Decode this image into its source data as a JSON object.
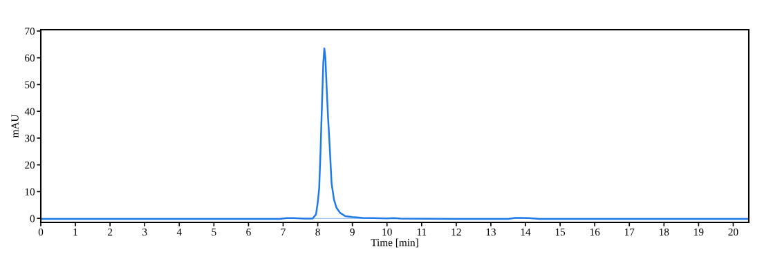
{
  "chart_data": {
    "type": "line",
    "xlabel": "Time [min]",
    "ylabel": "mAU",
    "xlim": [
      0,
      20.45
    ],
    "ylim": [
      -1.5,
      70.5
    ],
    "xticks": [
      0,
      1,
      2,
      3,
      4,
      5,
      6,
      7,
      8,
      9,
      10,
      11,
      12,
      13,
      14,
      15,
      16,
      17,
      18,
      19,
      20
    ],
    "yticks": [
      0,
      10,
      20,
      30,
      40,
      50,
      60,
      70
    ],
    "grid": false,
    "marker": "none",
    "line_style": "solid",
    "ref_lines": [
      {
        "axis": "y",
        "value": 0,
        "color": "#7fb8f0"
      }
    ],
    "series": [
      {
        "color": "#1f7ae8",
        "x": [
          0,
          4,
          6.9,
          7.1,
          7.3,
          7.6,
          7.85,
          7.95,
          8.0,
          8.04,
          8.08,
          8.12,
          8.16,
          8.19,
          8.22,
          8.26,
          8.3,
          8.34,
          8.4,
          8.47,
          8.54,
          8.65,
          8.8,
          9.0,
          9.3,
          9.6,
          10,
          10.2,
          10.4,
          12,
          13.5,
          13.7,
          13.9,
          14.1,
          14.4,
          17,
          20.45
        ],
        "values": [
          -0.2,
          -0.2,
          -0.2,
          0.1,
          0.1,
          -0.1,
          -0.1,
          1.5,
          6,
          11,
          25,
          42,
          58,
          63.5,
          60,
          48,
          37,
          28,
          13,
          7,
          4,
          2,
          0.8,
          0.5,
          0.2,
          0.1,
          0,
          0.1,
          -0.1,
          -0.2,
          -0.2,
          0.2,
          0.2,
          0.1,
          -0.2,
          -0.2,
          -0.2
        ]
      }
    ]
  }
}
